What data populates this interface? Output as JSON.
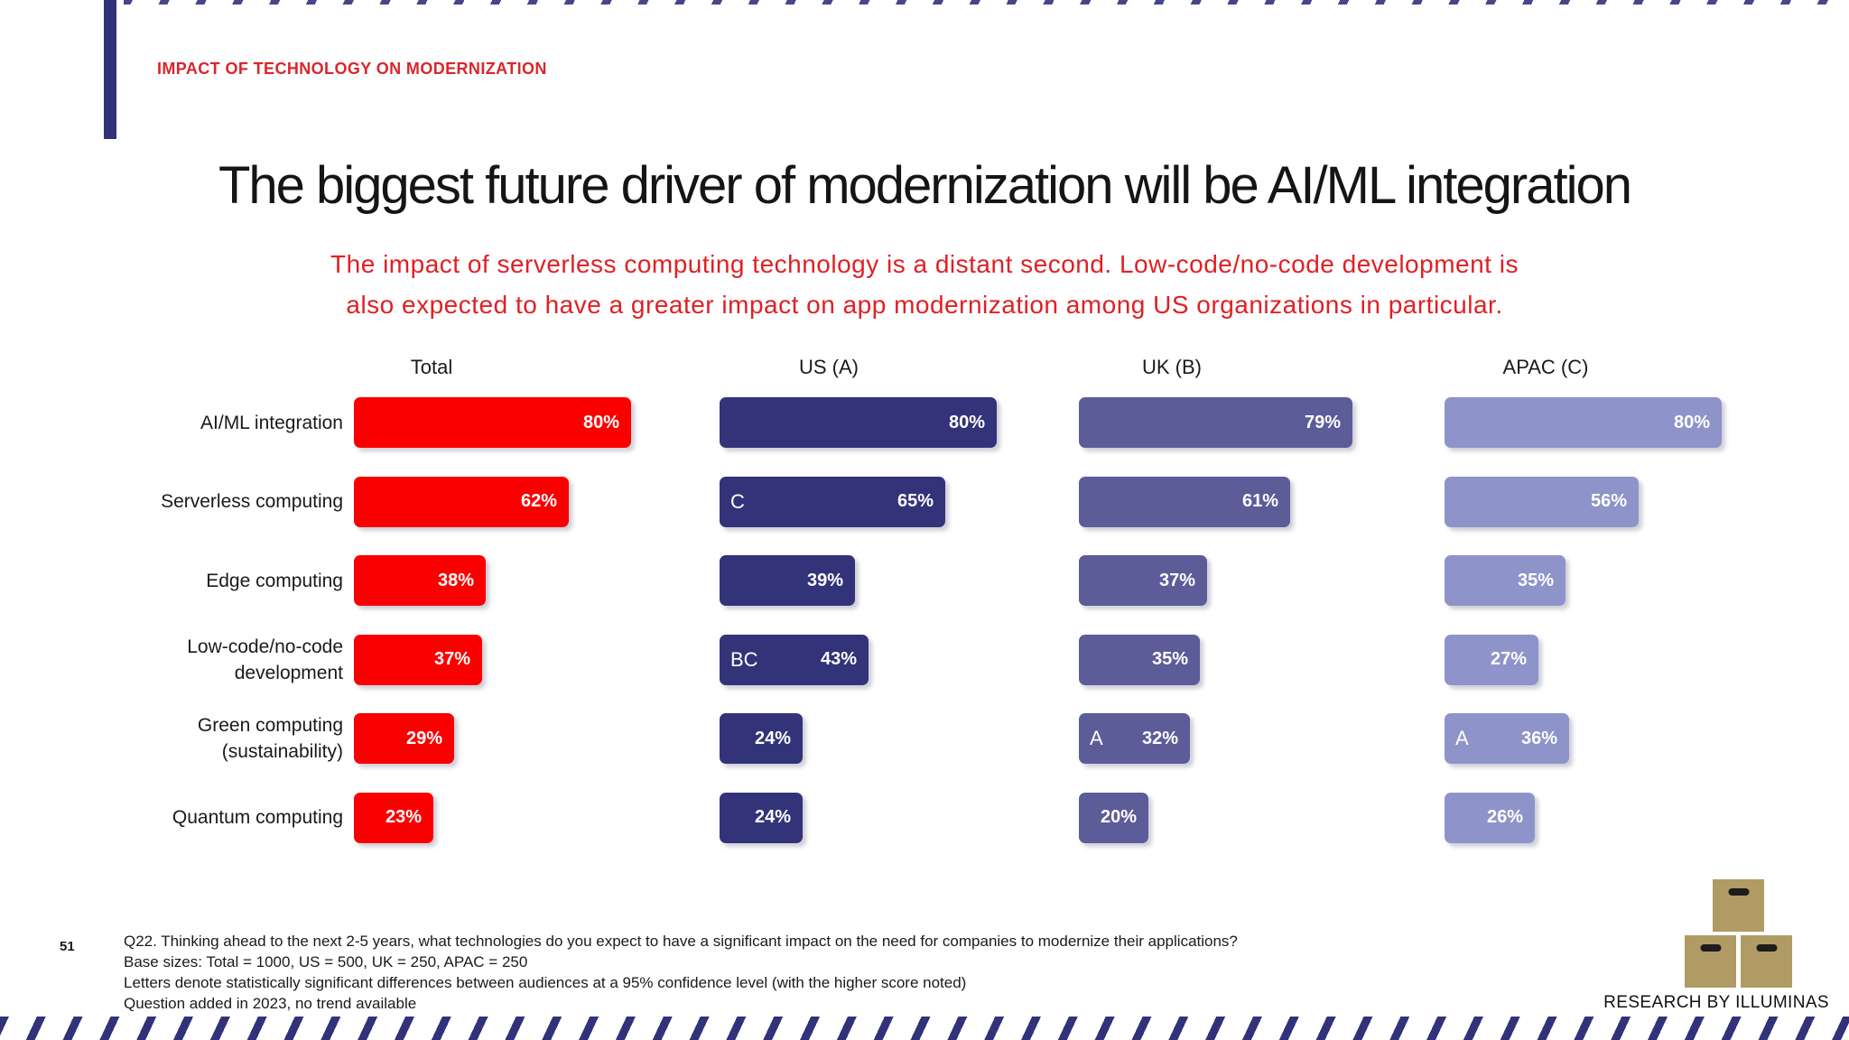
{
  "slide": {
    "eyebrow": "IMPACT OF TECHNOLOGY ON MODERNIZATION",
    "title": "The biggest future driver of modernization will be AI/ML integration",
    "subtitle_lines": [
      "The impact of serverless computing technology is a distant second. Low-code/no-code development is",
      "also expected to have a greater impact on app modernization among US organizations in particular."
    ],
    "page_number": "51",
    "footnotes": [
      "Q22. Thinking ahead to the next 2-5 years, what technologies do you expect to have a significant impact on the need for companies to modernize their applications?",
      "Base sizes: Total = 1000, US = 500, UK = 250, APAC = 250",
      "Letters denote statistically significant differences between audiences at a 95% confidence level (with the higher score noted)",
      "Question added in 2023, no trend available"
    ],
    "logo_text": "RESEARCH BY ILLUMINAS"
  },
  "colors": {
    "accent_navy": "#32327B",
    "text_red": "#E02024",
    "bar_red": "#FB0000",
    "bar_navy": "#333379",
    "bar_slate": "#5C5C99",
    "bar_periwinkle": "#8E94C9",
    "logo_tan": "#B09B64"
  },
  "chart_data": {
    "type": "bar",
    "orientation": "horizontal",
    "unit": "%",
    "xlim": [
      0,
      100
    ],
    "grid": false,
    "value_labels": "inside-right, white bold",
    "significance_letters_position": "inside-left, white",
    "categories": [
      "AI/ML integration",
      "Serverless computing",
      "Edge computing",
      "Low-code/no-code development",
      "Green computing (sustainability)",
      "Quantum computing"
    ],
    "category_label_lines": [
      [
        "AI/ML integration"
      ],
      [
        "Serverless computing"
      ],
      [
        "Edge computing"
      ],
      [
        "Low-code/no-code",
        "development"
      ],
      [
        "Green computing",
        "(sustainability)"
      ],
      [
        "Quantum computing"
      ]
    ],
    "series": [
      {
        "name": "Total",
        "color": "#FB0000",
        "values": [
          80,
          62,
          38,
          37,
          29,
          23
        ],
        "letters": [
          "",
          "",
          "",
          "",
          "",
          ""
        ]
      },
      {
        "name": "US (A)",
        "color": "#333379",
        "values": [
          80,
          65,
          39,
          43,
          24,
          24
        ],
        "letters": [
          "",
          "C",
          "",
          "BC",
          "",
          ""
        ]
      },
      {
        "name": "UK (B)",
        "color": "#5C5C99",
        "values": [
          79,
          61,
          37,
          35,
          32,
          20
        ],
        "letters": [
          "",
          "",
          "",
          "",
          "A",
          ""
        ]
      },
      {
        "name": "APAC (C)",
        "color": "#8E94C9",
        "values": [
          80,
          56,
          35,
          27,
          36,
          26
        ],
        "letters": [
          "",
          "",
          "",
          "",
          "A",
          ""
        ]
      }
    ]
  }
}
